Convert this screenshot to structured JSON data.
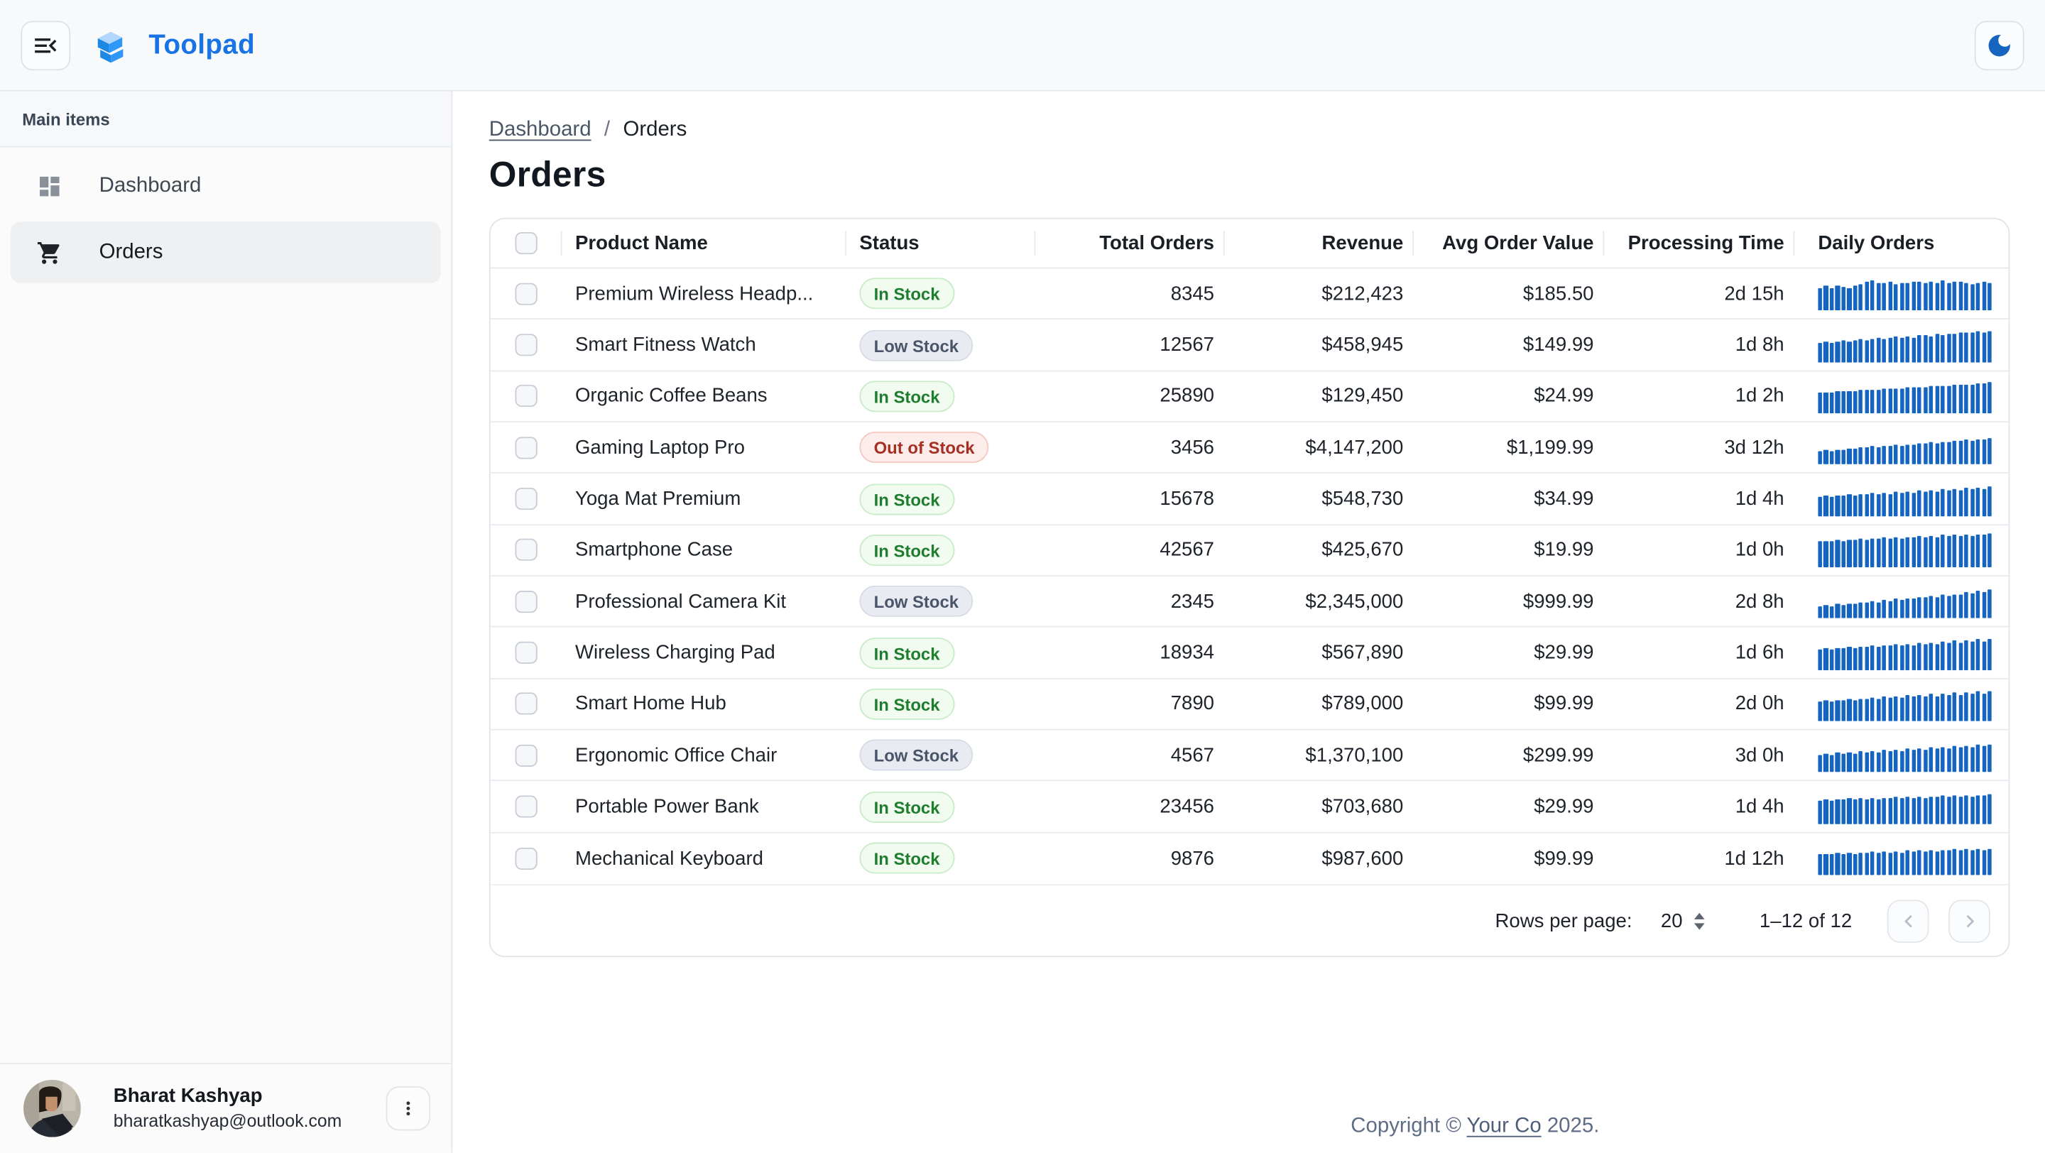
{
  "app": {
    "name": "Toolpad"
  },
  "theme": {
    "accent_blue": "#1a73e4",
    "sparkline_blue": "#1565c0",
    "moon_icon_blue": "#1565c0",
    "status_styles": {
      "In Stock": {
        "fg": "#1e7d2e",
        "bg": "#f1fbf0",
        "border": "#c9ecc8"
      },
      "Low Stock": {
        "fg": "#4a5569",
        "bg": "#e9ebf2",
        "border": "#d7dbe6"
      },
      "Out of Stock": {
        "fg": "#a52f22",
        "bg": "#fcedeb",
        "border": "#f5c8c2"
      }
    }
  },
  "icons": {
    "menu": "menu-open-icon",
    "theme_toggle": "dark-mode-moon-icon",
    "dashboard": "dashboard-grid-icon",
    "orders": "shopping-cart-icon",
    "user_menu": "more-vert-icon",
    "pager_prev": "chevron-left-icon",
    "pager_next": "chevron-right-icon"
  },
  "sidebar": {
    "section_label": "Main items",
    "items": [
      {
        "label": "Dashboard",
        "active": false
      },
      {
        "label": "Orders",
        "active": true
      }
    ],
    "user": {
      "name": "Bharat Kashyap",
      "email": "bharatkashyap@outlook.com"
    }
  },
  "breadcrumb": {
    "items": [
      "Dashboard",
      "Orders"
    ],
    "separator": "/"
  },
  "page": {
    "title": "Orders"
  },
  "table": {
    "columns": [
      {
        "id": "select",
        "label": ""
      },
      {
        "id": "product",
        "label": "Product Name",
        "align": "left"
      },
      {
        "id": "status",
        "label": "Status",
        "align": "left"
      },
      {
        "id": "total_orders",
        "label": "Total Orders",
        "align": "right"
      },
      {
        "id": "revenue",
        "label": "Revenue",
        "align": "right"
      },
      {
        "id": "avg_order_value",
        "label": "Avg Order Value",
        "align": "right"
      },
      {
        "id": "processing_time",
        "label": "Processing Time",
        "align": "right"
      },
      {
        "id": "daily_orders",
        "label": "Daily Orders",
        "align": "left"
      }
    ],
    "rows": [
      {
        "product": "Premium Wireless Headp...",
        "status": "In Stock",
        "total_orders": "8345",
        "revenue": "$212,423",
        "avg_order_value": "$185.50",
        "processing_time": "2d 15h",
        "daily_orders": [
          65,
          72,
          68,
          75,
          70,
          66,
          74,
          78,
          85,
          90,
          82,
          80,
          84,
          79,
          83,
          81,
          86,
          84,
          82,
          85,
          83,
          88,
          80,
          84,
          86,
          82,
          79,
          83,
          87,
          81
        ]
      },
      {
        "product": "Smart Fitness Watch",
        "status": "Low Stock",
        "total_orders": "12567",
        "revenue": "$458,945",
        "avg_order_value": "$149.99",
        "processing_time": "1d 8h",
        "daily_orders": [
          55,
          58,
          56,
          60,
          62,
          59,
          64,
          66,
          63,
          68,
          70,
          67,
          72,
          74,
          71,
          76,
          73,
          78,
          80,
          77,
          82,
          79,
          84,
          81,
          86,
          88,
          85,
          90,
          87,
          92
        ]
      },
      {
        "product": "Organic Coffee Beans",
        "status": "In Stock",
        "total_orders": "25890",
        "revenue": "$129,450",
        "avg_order_value": "$24.99",
        "processing_time": "1d 2h",
        "daily_orders": [
          60,
          62,
          61,
          64,
          63,
          66,
          65,
          68,
          67,
          70,
          69,
          72,
          71,
          74,
          73,
          76,
          75,
          78,
          77,
          80,
          79,
          82,
          81,
          84,
          83,
          86,
          85,
          88,
          87,
          90
        ]
      },
      {
        "product": "Gaming Laptop Pro",
        "status": "Out of Stock",
        "total_orders": "3456",
        "revenue": "$4,147,200",
        "avg_order_value": "$1,199.99",
        "processing_time": "3d 12h",
        "daily_orders": [
          40,
          43,
          41,
          45,
          44,
          48,
          46,
          50,
          49,
          53,
          51,
          55,
          54,
          58,
          56,
          60,
          59,
          63,
          61,
          65,
          64,
          68,
          66,
          70,
          69,
          73,
          71,
          75,
          74,
          78
        ]
      },
      {
        "product": "Yoga Mat Premium",
        "status": "In Stock",
        "total_orders": "15678",
        "revenue": "$548,730",
        "avg_order_value": "$34.99",
        "processing_time": "1d 4h",
        "daily_orders": [
          55,
          58,
          56,
          60,
          59,
          62,
          60,
          64,
          62,
          66,
          64,
          68,
          65,
          70,
          67,
          72,
          69,
          74,
          71,
          76,
          73,
          78,
          75,
          80,
          77,
          82,
          79,
          84,
          81,
          86
        ]
      },
      {
        "product": "Smartphone Case",
        "status": "In Stock",
        "total_orders": "42567",
        "revenue": "$425,670",
        "avg_order_value": "$19.99",
        "processing_time": "1d 0h",
        "daily_orders": [
          75,
          78,
          76,
          80,
          78,
          82,
          80,
          84,
          81,
          86,
          83,
          87,
          84,
          89,
          86,
          90,
          87,
          92,
          88,
          93,
          90,
          94,
          91,
          95,
          92,
          96,
          93,
          97,
          94,
          98
        ]
      },
      {
        "product": "Professional Camera Kit",
        "status": "Low Stock",
        "total_orders": "2345",
        "revenue": "$2,345,000",
        "avg_order_value": "$999.99",
        "processing_time": "2d 8h",
        "daily_orders": [
          35,
          38,
          37,
          42,
          40,
          45,
          43,
          48,
          46,
          51,
          49,
          54,
          52,
          57,
          55,
          60,
          58,
          63,
          61,
          66,
          64,
          69,
          67,
          72,
          70,
          76,
          74,
          80,
          78,
          85
        ]
      },
      {
        "product": "Wireless Charging Pad",
        "status": "In Stock",
        "total_orders": "18934",
        "revenue": "$567,890",
        "avg_order_value": "$29.99",
        "processing_time": "1d 6h",
        "daily_orders": [
          60,
          63,
          61,
          65,
          63,
          67,
          64,
          69,
          66,
          71,
          68,
          73,
          70,
          75,
          72,
          77,
          73,
          79,
          75,
          81,
          77,
          83,
          79,
          85,
          80,
          87,
          82,
          89,
          84,
          91
        ]
      },
      {
        "product": "Smart Home Hub",
        "status": "In Stock",
        "total_orders": "7890",
        "revenue": "$789,000",
        "avg_order_value": "$99.99",
        "processing_time": "2d 0h",
        "daily_orders": [
          58,
          61,
          59,
          63,
          61,
          65,
          62,
          67,
          64,
          69,
          66,
          71,
          68,
          73,
          69,
          75,
          71,
          77,
          73,
          79,
          74,
          81,
          76,
          83,
          78,
          85,
          80,
          87,
          81,
          89
        ]
      },
      {
        "product": "Ergonomic Office Chair",
        "status": "Low Stock",
        "total_orders": "4567",
        "revenue": "$1,370,100",
        "avg_order_value": "$299.99",
        "processing_time": "3d 0h",
        "daily_orders": [
          52,
          55,
          53,
          57,
          55,
          59,
          56,
          61,
          58,
          63,
          60,
          65,
          62,
          67,
          64,
          69,
          65,
          71,
          67,
          73,
          69,
          75,
          71,
          77,
          73,
          79,
          75,
          81,
          77,
          83
        ]
      },
      {
        "product": "Portable Power Bank",
        "status": "In Stock",
        "total_orders": "23456",
        "revenue": "$703,680",
        "avg_order_value": "$29.99",
        "processing_time": "1d 4h",
        "daily_orders": [
          68,
          71,
          69,
          73,
          70,
          74,
          71,
          75,
          72,
          76,
          73,
          77,
          74,
          78,
          75,
          79,
          76,
          80,
          77,
          81,
          78,
          82,
          79,
          83,
          80,
          84,
          81,
          85,
          82,
          86
        ]
      },
      {
        "product": "Mechanical Keyboard",
        "status": "In Stock",
        "total_orders": "9876",
        "revenue": "$987,600",
        "avg_order_value": "$99.99",
        "processing_time": "1d 12h",
        "daily_orders": [
          62,
          65,
          63,
          67,
          64,
          68,
          65,
          69,
          66,
          70,
          67,
          71,
          68,
          72,
          69,
          73,
          70,
          74,
          71,
          75,
          72,
          76,
          73,
          77,
          74,
          78,
          75,
          79,
          76,
          80
        ]
      }
    ]
  },
  "pagination": {
    "rows_per_page_label": "Rows per page:",
    "rows_per_page_value": "20",
    "range_label": "1–12 of 12"
  },
  "footer": {
    "prefix": "Copyright © ",
    "link": "Your Co",
    "suffix": " 2025."
  }
}
